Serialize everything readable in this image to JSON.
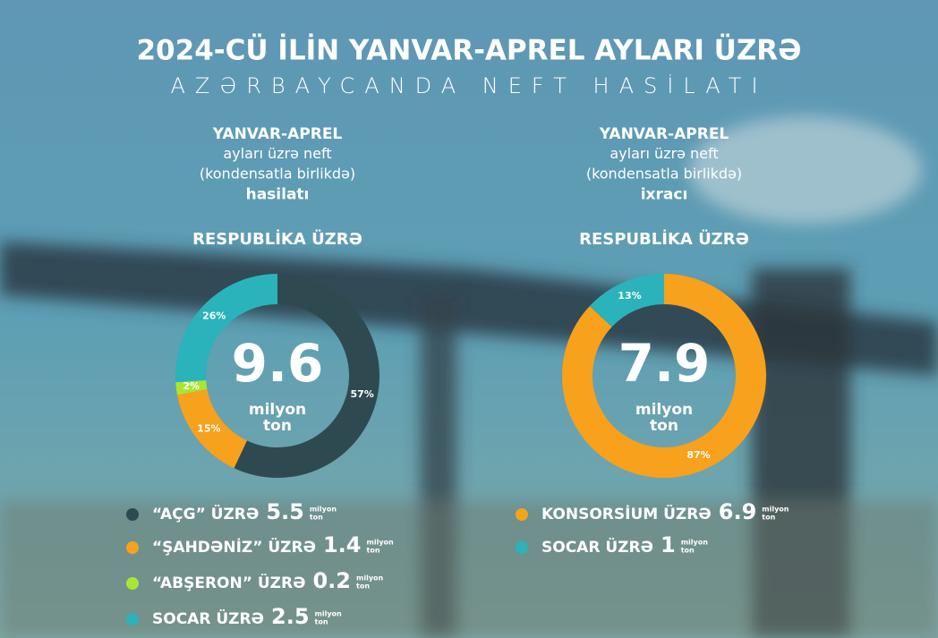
{
  "title": "2024-CÜ İLİN YANVAR-APREL AYLARI ÜZRƏ",
  "subtitle": "AZƏRBAYCANDA NEFT HASİLATI",
  "chart_data": [
    {
      "type": "donut",
      "heading": [
        "YANVAR-APREL",
        "ayları üzrə neft",
        "(kondensatla birlikdə)",
        "hasilatı"
      ],
      "region": "RESPUBLİKA ÜZRƏ",
      "total": 9.6,
      "total_unit": [
        "milyon",
        "ton"
      ],
      "categories": [
        "“AÇG” ÜZRƏ",
        "“ŞAHDƏNİZ” ÜZRƏ",
        "“ABŞERON” ÜZRƏ",
        "SOCAR ÜZRƏ"
      ],
      "values": [
        57,
        15,
        2,
        26
      ],
      "value_labels": [
        "57%",
        "15%",
        "2%",
        "26%"
      ],
      "colors": [
        "#2e4a50",
        "#f7a11c",
        "#a8e633",
        "#2ab3bb"
      ],
      "amounts": [
        5.5,
        1.4,
        0.2,
        2.5
      ],
      "amount_unit": [
        "milyon",
        "ton"
      ]
    },
    {
      "type": "donut",
      "heading": [
        "YANVAR-APREL",
        "ayları üzrə neft",
        "(kondensatla birlikdə)",
        "ixracı"
      ],
      "region": "RESPUBLİKA ÜZRƏ",
      "total": 7.9,
      "total_unit": [
        "milyon",
        "ton"
      ],
      "categories": [
        "KONSORSİUM ÜZRƏ",
        "SOCAR ÜZRƏ"
      ],
      "values": [
        87,
        13
      ],
      "value_labels": [
        "87%",
        "13%"
      ],
      "colors": [
        "#f7a11c",
        "#2ab3bb"
      ],
      "amounts": [
        6.9,
        1.0
      ],
      "amount_unit": [
        "milyon",
        "ton"
      ]
    }
  ]
}
